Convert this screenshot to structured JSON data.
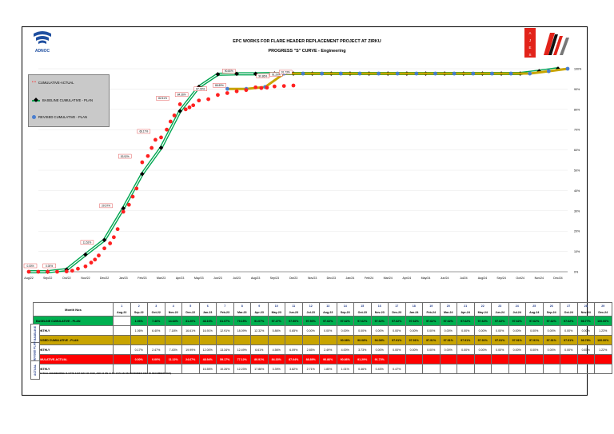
{
  "header": {
    "title": "EPC WORKS FOR FLARE HEADER REPLACEMENT PROJECT AT ZIRKU",
    "subtitle": "PROGRESS \"S\" CURVE -   Engineering",
    "logo_left_text": "ADNOC",
    "logo_right_text": "AJES"
  },
  "legend": {
    "actual": "CUMULATIVE-ACTUAL",
    "baseline": "BASELINE CUMULATIVE - PLAN",
    "revised": "REVISED CUMULATIVE - PLAN"
  },
  "colors": {
    "actual": "#ff2020",
    "baseline": "#00a651",
    "revised": "#4a7ecf",
    "revised_line": "#c8a400",
    "actual_row": "#ff0000",
    "baseline_row": "#00b050",
    "revised_row": "#c8a400"
  },
  "chart_data": {
    "type": "line",
    "x_labels": [
      "Aug/22",
      "Sep/22",
      "Oct/22",
      "Nov/22",
      "Dec/22",
      "Jan/23",
      "Feb/23",
      "Mar/23",
      "Apr/23",
      "May/23",
      "Jun/23",
      "Jul/23",
      "Aug/23",
      "Sep/23",
      "Oct/23",
      "Nov/23",
      "Dec/23",
      "Jan/24",
      "Feb/24",
      "Mar/24",
      "Apr/24",
      "May/24",
      "Jun/24",
      "Jul/24",
      "Aug/24",
      "Sep/24",
      "Oct/24",
      "Nov/24",
      "Dec/24"
    ],
    "y_ticks": [
      "0%",
      "10%",
      "20%",
      "30%",
      "40%",
      "50%",
      "60%",
      "70%",
      "80%",
      "90%",
      "100%"
    ],
    "ylim": [
      0,
      100
    ],
    "baseline": [
      0,
      0,
      1.06,
      8.46,
      15.64,
      31.2,
      48.16,
      61.07,
      79.15,
      91.07,
      97.27,
      97.5,
      97.5,
      97.62,
      97.62,
      97.62,
      97.62,
      97.62,
      97.62,
      97.62,
      97.62,
      97.62,
      97.62,
      97.62,
      97.62,
      97.62,
      97.62,
      98.77,
      100
    ],
    "revised": [
      90.08,
      90.08,
      91.01,
      97.62,
      97.62,
      97.62,
      97.62,
      97.62,
      97.62,
      97.62,
      97.62,
      97.62,
      97.62,
      97.62,
      97.62,
      97.62,
      97.62,
      98.77,
      100
    ],
    "revised_start_index": 10,
    "actual_points": [
      [
        0,
        0
      ],
      [
        0.5,
        0
      ],
      [
        1,
        0
      ],
      [
        1.5,
        0
      ],
      [
        2,
        0.17
      ],
      [
        2.3,
        0.5
      ],
      [
        2.6,
        1.5
      ],
      [
        3,
        2.64
      ],
      [
        3.3,
        4.5
      ],
      [
        3.5,
        6
      ],
      [
        3.7,
        8
      ],
      [
        4,
        11.52
      ],
      [
        4.3,
        14
      ],
      [
        4.5,
        17
      ],
      [
        4.7,
        21
      ],
      [
        5,
        29.57
      ],
      [
        5.3,
        33
      ],
      [
        5.5,
        37
      ],
      [
        5.7,
        41
      ],
      [
        6,
        53.92
      ],
      [
        6.3,
        57
      ],
      [
        6.5,
        61
      ],
      [
        6.7,
        65
      ],
      [
        7,
        66.17
      ],
      [
        7.3,
        70
      ],
      [
        7.5,
        74
      ],
      [
        7.7,
        77
      ],
      [
        8,
        82.51
      ],
      [
        8.3,
        80
      ],
      [
        8.5,
        81
      ],
      [
        8.7,
        82
      ],
      [
        9,
        84.36
      ],
      [
        9.5,
        85
      ],
      [
        10,
        87.09
      ],
      [
        10.5,
        88
      ],
      [
        11,
        88.89
      ],
      [
        11.5,
        89.5
      ],
      [
        12,
        90.86
      ],
      [
        12.3,
        90.5
      ],
      [
        12.6,
        90.7
      ],
      [
        13,
        91.29
      ],
      [
        13.5,
        91.5
      ],
      [
        14,
        91.73
      ]
    ],
    "labels": [
      {
        "x": 0,
        "y": 0,
        "text": "0.00%"
      },
      {
        "x": 1,
        "y": 0,
        "text": "0.00%"
      },
      {
        "x": 3,
        "y": 11.52,
        "text": "11.52%"
      },
      {
        "x": 4,
        "y": 29.57,
        "text": "29.57%"
      },
      {
        "x": 5,
        "y": 53.92,
        "text": "53.92%"
      },
      {
        "x": 6,
        "y": 66.17,
        "text": "66.17%"
      },
      {
        "x": 7,
        "y": 82.51,
        "text": "82.51%"
      },
      {
        "x": 8,
        "y": 84.36,
        "text": "84.36%"
      },
      {
        "x": 9,
        "y": 87.09,
        "text": "87.09%"
      },
      {
        "x": 10,
        "y": 88.89,
        "text": "88.89%"
      },
      {
        "x": 10.5,
        "y": 95.9,
        "text": "90.80%"
      },
      {
        "x": 12.3,
        "y": 93.5,
        "text": "90.86%"
      },
      {
        "x": 13,
        "y": 94.3,
        "text": "91.29%"
      },
      {
        "x": 13.5,
        "y": 95.3,
        "text": "91.73%"
      }
    ]
  },
  "table": {
    "header_label": "Month Nos",
    "month_nos": [
      "1",
      "2",
      "3",
      "4",
      "5",
      "6",
      "7",
      "8",
      "9",
      "10",
      "11",
      "12",
      "13",
      "14",
      "15",
      "16",
      "17",
      "18",
      "19",
      "20",
      "21",
      "22",
      "23",
      "24",
      "25",
      "26",
      "27",
      "28",
      "29"
    ],
    "months": [
      "Aug-22",
      "Sep-22",
      "Oct-22",
      "Nov-22",
      "Dec-22",
      "Jan-23",
      "Feb-23",
      "Mar-23",
      "Apr-23",
      "May-23",
      "Jun-23",
      "Jul-23",
      "Aug-23",
      "Sep-23",
      "Oct-23",
      "Nov-23",
      "Dec-23",
      "Jan-24",
      "Feb-24",
      "Mar-24",
      "Apr-24",
      "May-24",
      "Jun-24",
      "Jul-24",
      "Aug-24",
      "Sep-24",
      "Oct-24",
      "Nov-24",
      "Dec-24"
    ],
    "group_baseline": "BASELIN E",
    "group_revised": "REVISED PLAN",
    "group_actual": "ACTUAL",
    "baseline_cum_label": "BASELINE CUMULATIVE - PLAN",
    "baseline_cum": [
      "",
      "1.06%",
      "7.46%",
      "14.64%",
      "31.20%",
      "48.16%",
      "61.07%",
      "79.15%",
      "91.07%",
      "97.27%",
      "97.50%",
      "97.50%",
      "97.62%",
      "97.62%",
      "97.62%",
      "97.62%",
      "97.62%",
      "97.62%",
      "97.62%",
      "97.62%",
      "97.62%",
      "97.62%",
      "97.62%",
      "97.62%",
      "97.62%",
      "97.62%",
      "97.62%",
      "98.77%",
      "100.00%"
    ],
    "baseline_mon_label": "MONTHLY",
    "baseline_mon": [
      "",
      "1.06%",
      "6.40%",
      "7.18%",
      "16.61%",
      "16.91%",
      "12.91%",
      "18.09%",
      "12.32%",
      "5.86%",
      "0.65%",
      "0.00%",
      "0.00%",
      "0.00%",
      "0.00%",
      "0.00%",
      "0.00%",
      "0.00%",
      "0.00%",
      "0.00%",
      "0.00%",
      "0.00%",
      "0.00%",
      "0.00%",
      "0.00%",
      "0.00%",
      "0.00%",
      "0.00%",
      "1.23%"
    ],
    "revised_cum_label": "REVISED CUMULATIVE - PLAN",
    "revised_cum": [
      "",
      "",
      "",
      "",
      "",
      "",
      "",
      "",
      "",
      "",
      "",
      "",
      "",
      "90.08%",
      "90.08%",
      "94.08%",
      "97.91%",
      "97.91%",
      "97.91%",
      "97.91%",
      "97.91%",
      "97.91%",
      "97.91%",
      "97.91%",
      "97.91%",
      "97.91%",
      "97.91%",
      "98.78%",
      "100.00%"
    ],
    "revised_mon_label": "MONTHLY",
    "revised_mon": [
      "",
      "0.17%",
      "2.47%",
      "7.43%",
      "19.99%",
      "12.00%",
      "13.34%",
      "12.49%",
      "6.61%",
      "4.56%",
      "6.09%",
      "2.85%",
      "2.49%",
      "4.00%",
      "3.73%",
      "0.00%",
      "0.00%",
      "0.00%",
      "0.00%",
      "0.00%",
      "0.00%",
      "0.00%",
      "0.00%",
      "0.00%",
      "0.00%",
      "0.00%",
      "0.00%",
      "0.87%",
      "1.22%"
    ],
    "actual_cum_label": "CUMULATIVE-ACTUAL",
    "actual_cum": [
      "",
      "0.00%",
      "0.00%",
      "11.12%",
      "24.67%",
      "48.94%",
      "59.17%",
      "77.12%",
      "80.91%",
      "84.33%",
      "87.04%",
      "88.89%",
      "90.86%",
      "90.86%",
      "91.29%",
      "91.73%",
      "",
      "",
      "",
      "",
      "",
      "",
      "",
      "",
      "",
      "",
      "",
      "",
      ""
    ],
    "actual_mon_label": "MONTHLY",
    "actual_mon": [
      "",
      "",
      "",
      "",
      "",
      "16.55%",
      "10.26%",
      "12.23%",
      "17.86%",
      "3.39%",
      "3.82%",
      "2.71%",
      "1.85%",
      "1.01%",
      "0.46%",
      "0.43%",
      "0.47%",
      "",
      "",
      "",
      "",
      "",
      "",
      "",
      "",
      "",
      "",
      "",
      ""
    ],
    "note": "(NOTE: ACTUAL ENGINEERING IS UPTO 31ST MAY OF 2023, AND 10 ON 11 TO 15 PLAN ON NOVEMBER 2023 TO DECEMBER 2024)"
  }
}
